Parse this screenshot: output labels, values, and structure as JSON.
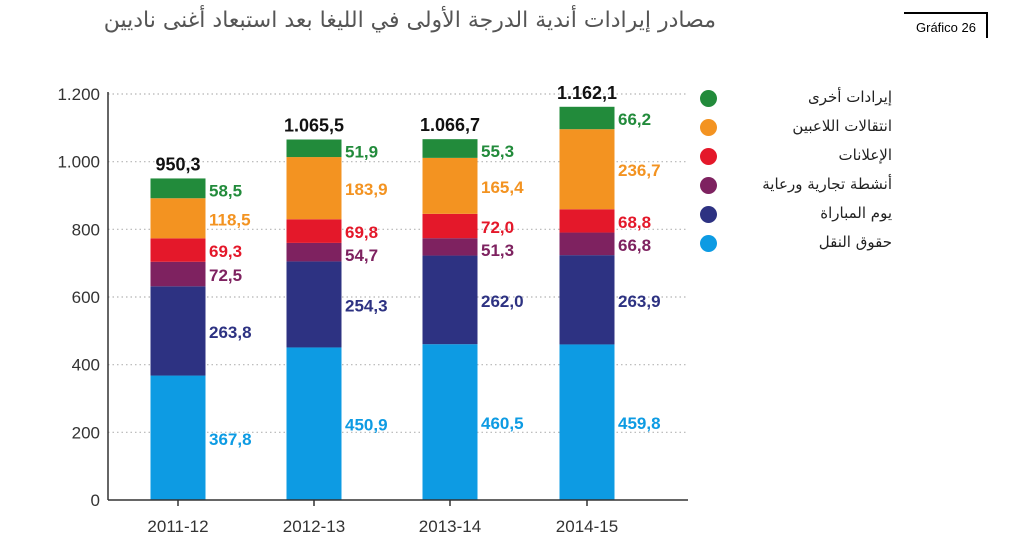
{
  "header": {
    "title": "مصادر إيرادات أندية الدرجة الأولى في الليغا بعد استبعاد أغنى ناديين",
    "tag": "Gráfico 26"
  },
  "chart_data": {
    "type": "bar",
    "stacked": true,
    "title": "مصادر إيرادات أندية الدرجة الأولى في الليغا بعد استبعاد أغنى ناديين",
    "categories": [
      "2011-12",
      "2012-13",
      "2013-14",
      "2014-15"
    ],
    "ylim": [
      0,
      1200
    ],
    "yticks": [
      {
        "value": 0,
        "label": "0"
      },
      {
        "value": 200,
        "label": "200"
      },
      {
        "value": 400,
        "label": "400"
      },
      {
        "value": 600,
        "label": "600"
      },
      {
        "value": 800,
        "label": "800"
      },
      {
        "value": 1000,
        "label": "1.000"
      },
      {
        "value": 1200,
        "label": "1.200"
      }
    ],
    "grid": "horizontal-dotted",
    "legend_position": "right",
    "totals": [
      {
        "value": 950.3,
        "label": "950,3"
      },
      {
        "value": 1065.5,
        "label": "1.065,5"
      },
      {
        "value": 1066.7,
        "label": "1.066,7"
      },
      {
        "value": 1162.1,
        "label": "1.162,1"
      }
    ],
    "series": [
      {
        "name": "حقوق النقل",
        "color": "#0d9be3",
        "values": [
          367.8,
          450.9,
          460.5,
          459.8
        ],
        "labels": [
          "367,8",
          "450,9",
          "460,5",
          "459,8"
        ]
      },
      {
        "name": "يوم المباراة",
        "color": "#2d3282",
        "values": [
          263.8,
          254.3,
          262.0,
          263.9
        ],
        "labels": [
          "263,8",
          "254,3",
          "262,0",
          "263,9"
        ]
      },
      {
        "name": "أنشطة تجارية ورعاية",
        "color": "#7e2260",
        "values": [
          72.5,
          54.7,
          51.3,
          66.8
        ],
        "labels": [
          "72,5",
          "54,7",
          "51,3",
          "66,8"
        ]
      },
      {
        "name": "الإعلانات",
        "color": "#e4182a",
        "values": [
          69.3,
          69.8,
          72.0,
          68.8
        ],
        "labels": [
          "69,3",
          "69,8",
          "72,0",
          "68,8"
        ]
      },
      {
        "name": "انتقالات اللاعبين",
        "color": "#f39321",
        "values": [
          118.5,
          183.9,
          165.4,
          236.7
        ],
        "labels": [
          "118,5",
          "183,9",
          "165,4",
          "236,7"
        ]
      },
      {
        "name": "إيرادات أخرى",
        "color": "#228b3b",
        "values": [
          58.5,
          51.9,
          55.3,
          66.2
        ],
        "labels": [
          "58,5",
          "51,9",
          "55,3",
          "66,2"
        ]
      }
    ]
  },
  "legend": [
    {
      "name": "إيرادات أخرى",
      "color": "#228b3b"
    },
    {
      "name": "انتقالات اللاعبين",
      "color": "#f39321"
    },
    {
      "name": "الإعلانات",
      "color": "#e4182a"
    },
    {
      "name": "أنشطة تجارية ورعاية",
      "color": "#7e2260"
    },
    {
      "name": "يوم المباراة",
      "color": "#2d3282"
    },
    {
      "name": "حقوق النقل",
      "color": "#0d9be3"
    }
  ]
}
